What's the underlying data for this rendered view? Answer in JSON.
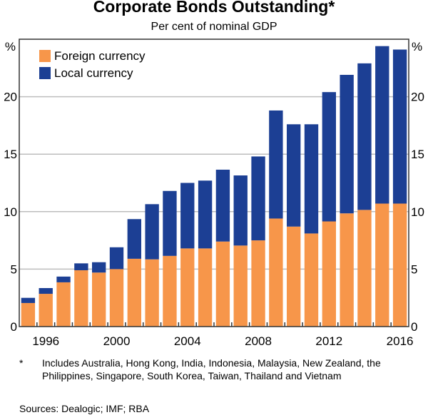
{
  "chart_data": {
    "type": "bar",
    "stacked": true,
    "title": "Corporate Bonds Outstanding*",
    "subtitle": "Per cent of nominal GDP",
    "ylabel": "%",
    "ylim": [
      0,
      25
    ],
    "yticks": [
      0,
      5,
      10,
      15,
      20
    ],
    "xtick_labels": [
      "1996",
      "2000",
      "2004",
      "2008",
      "2012",
      "2016"
    ],
    "grid": true,
    "legend_position": "top-left",
    "categories": [
      1995,
      1996,
      1997,
      1998,
      1999,
      2000,
      2001,
      2002,
      2003,
      2004,
      2005,
      2006,
      2007,
      2008,
      2009,
      2010,
      2011,
      2012,
      2013,
      2014,
      2015,
      2016
    ],
    "series": [
      {
        "name": "Foreign currency",
        "color": "#F7964A",
        "values": [
          2.05,
          2.85,
          3.85,
          4.9,
          4.7,
          5.0,
          5.9,
          5.85,
          6.15,
          6.8,
          6.8,
          7.4,
          7.05,
          7.5,
          9.4,
          8.7,
          8.1,
          9.15,
          9.85,
          10.15,
          10.7,
          10.7
        ]
      },
      {
        "name": "Local currency",
        "color": "#1C3F94",
        "values": [
          0.45,
          0.5,
          0.5,
          0.6,
          0.9,
          1.9,
          3.45,
          4.8,
          5.65,
          5.7,
          5.9,
          6.25,
          6.1,
          7.3,
          9.4,
          8.9,
          9.5,
          11.25,
          12.05,
          12.75,
          13.7,
          13.4
        ]
      }
    ]
  },
  "footnote": {
    "marker": "*",
    "text": "Includes Australia, Hong Kong, India, Indonesia, Malaysia, New Zealand, the Philippines, Singapore, South Korea, Taiwan, Thailand and Vietnam"
  },
  "sources": "Sources: Dealogic; IMF; RBA"
}
